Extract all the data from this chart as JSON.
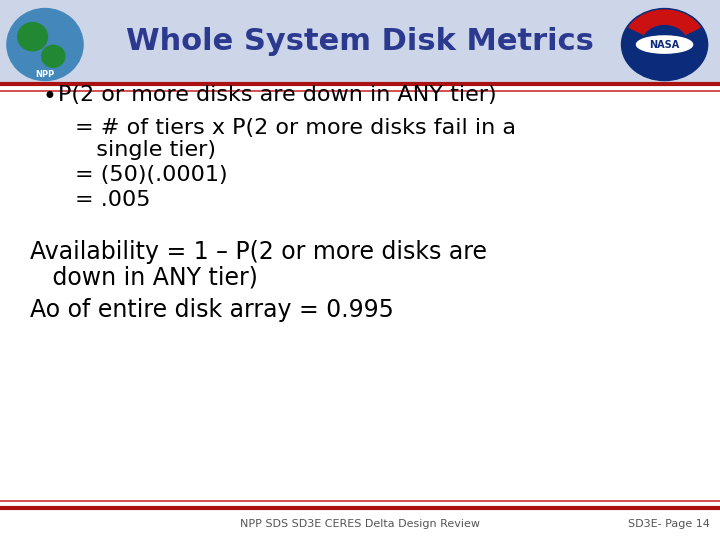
{
  "title": "Whole System Disk Metrics",
  "title_color": "#2B3A8F",
  "title_fontsize": 22,
  "bg_color": "#FFFFFF",
  "header_bg": "#CDD5E8",
  "header_line_color": "#AA1111",
  "header_line2_color": "#CC3333",
  "bullet_line0": "P(2 or more disks are down in ANY tier)",
  "bullet_line1": "= # of tiers x P(2 or more disks fail in a",
  "bullet_line1b": "   single tier)",
  "bullet_line2": "= (50)(.0001)",
  "bullet_line3": "= .005",
  "avail_line1": "Availability = 1 – P(2 or more disks are",
  "avail_line1b": "   down in ANY tier)",
  "avail_line2": "Ao of entire disk array = 0.995",
  "bullet_fontsize": 16,
  "avail_fontsize": 17,
  "text_color": "#000000",
  "footer_text": "NPP SDS SD3E CERES Delta Design Review",
  "footer_right": "SD3E- Page 14",
  "footer_fontsize": 8,
  "footer_color": "#555555"
}
